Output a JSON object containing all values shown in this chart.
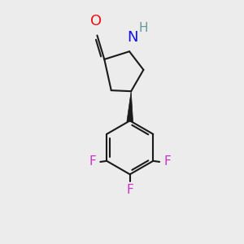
{
  "background_color": "#ececec",
  "bond_color": "#1a1a1a",
  "bond_width": 1.5,
  "O_color": "#ee1111",
  "N_color": "#1111ee",
  "H_color": "#669999",
  "F_color": "#cc33cc",
  "figsize": [
    3.0,
    3.0
  ],
  "dpi": 100,
  "xlim": [
    0,
    10
  ],
  "ylim": [
    0,
    10
  ]
}
